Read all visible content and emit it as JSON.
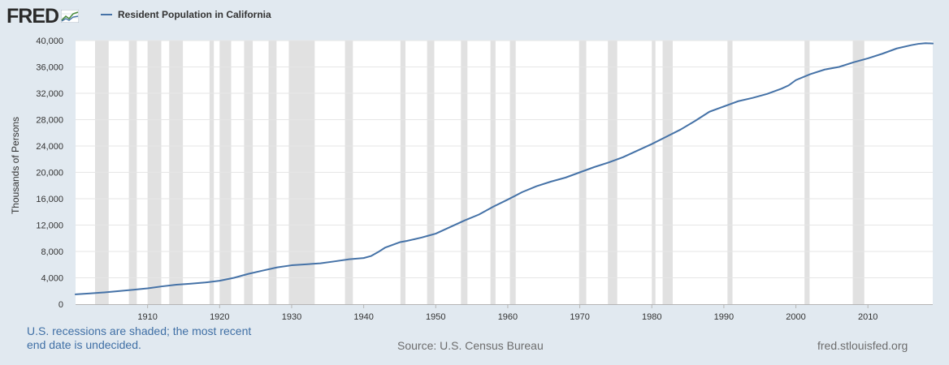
{
  "header": {
    "logo_text": "FRED",
    "legend_label": "Resident Population in California"
  },
  "footer": {
    "note_line1": "U.S. recessions are shaded; the most recent",
    "note_line2": "end date is undecided.",
    "source": "Source: U.S. Census Bureau",
    "site": "fred.stlouisfed.org"
  },
  "colors": {
    "series": "#4572a7",
    "recession": "#e1e1e1",
    "background": "#e1e9f0",
    "note_text": "#3f6fa5"
  },
  "chart_data": {
    "type": "line",
    "ylabel": "Thousands of Persons",
    "xlim": [
      1900,
      2019
    ],
    "ylim": [
      0,
      40000
    ],
    "x_ticks": [
      1910,
      1920,
      1930,
      1940,
      1950,
      1960,
      1970,
      1980,
      1990,
      2000,
      2010
    ],
    "y_ticks": [
      0,
      4000,
      8000,
      12000,
      16000,
      20000,
      24000,
      28000,
      32000,
      36000,
      40000
    ],
    "y_tick_labels": [
      "0",
      "4,000",
      "8,000",
      "12,000",
      "16,000",
      "20,000",
      "24,000",
      "28,000",
      "32,000",
      "36,000",
      "40,000"
    ],
    "grid": true,
    "legend": "top-left",
    "recessions": [
      [
        1902.7,
        1904.6
      ],
      [
        1907.4,
        1908.5
      ],
      [
        1910.0,
        1911.9
      ],
      [
        1913.0,
        1914.9
      ],
      [
        1918.6,
        1919.2
      ],
      [
        1920.0,
        1921.6
      ],
      [
        1923.4,
        1924.6
      ],
      [
        1926.8,
        1927.9
      ],
      [
        1929.6,
        1933.2
      ],
      [
        1937.4,
        1938.5
      ],
      [
        1945.1,
        1945.8
      ],
      [
        1948.8,
        1949.8
      ],
      [
        1953.5,
        1954.4
      ],
      [
        1957.6,
        1958.3
      ],
      [
        1960.3,
        1961.1
      ],
      [
        1969.9,
        1970.9
      ],
      [
        1973.9,
        1975.2
      ],
      [
        1980.0,
        1980.5
      ],
      [
        1981.5,
        1982.9
      ],
      [
        1990.5,
        1991.2
      ],
      [
        2001.2,
        2001.9
      ],
      [
        2007.9,
        2009.5
      ]
    ],
    "series": [
      {
        "x": [
          1900,
          1902,
          1904,
          1906,
          1908,
          1910,
          1912,
          1914,
          1916,
          1918,
          1920,
          1922,
          1924,
          1926,
          1928,
          1930,
          1932,
          1934,
          1936,
          1938,
          1940,
          1941,
          1942,
          1943,
          1944,
          1945,
          1946,
          1947,
          1948,
          1949,
          1950,
          1952,
          1954,
          1956,
          1958,
          1960,
          1962,
          1964,
          1966,
          1968,
          1970,
          1972,
          1974,
          1976,
          1978,
          1980,
          1982,
          1984,
          1986,
          1988,
          1990,
          1992,
          1994,
          1996,
          1998,
          1999,
          2000,
          2002,
          2004,
          2006,
          2008,
          2010,
          2012,
          2014,
          2016,
          2017,
          2018,
          2019
        ],
        "values": [
          1490,
          1630,
          1790,
          1990,
          2190,
          2400,
          2700,
          2950,
          3110,
          3290,
          3550,
          4000,
          4600,
          5100,
          5580,
          5900,
          6050,
          6200,
          6500,
          6820,
          7000,
          7300,
          7900,
          8600,
          9000,
          9400,
          9600,
          9850,
          10100,
          10400,
          10700,
          11700,
          12700,
          13600,
          14800,
          15870,
          17000,
          17900,
          18600,
          19200,
          20000,
          20800,
          21500,
          22300,
          23300,
          24300,
          25400,
          26500,
          27800,
          29200,
          30000,
          30800,
          31300,
          31900,
          32700,
          33200,
          34000,
          34900,
          35600,
          36000,
          36700,
          37300,
          38000,
          38800,
          39300,
          39500,
          39600,
          39550
        ]
      }
    ]
  }
}
